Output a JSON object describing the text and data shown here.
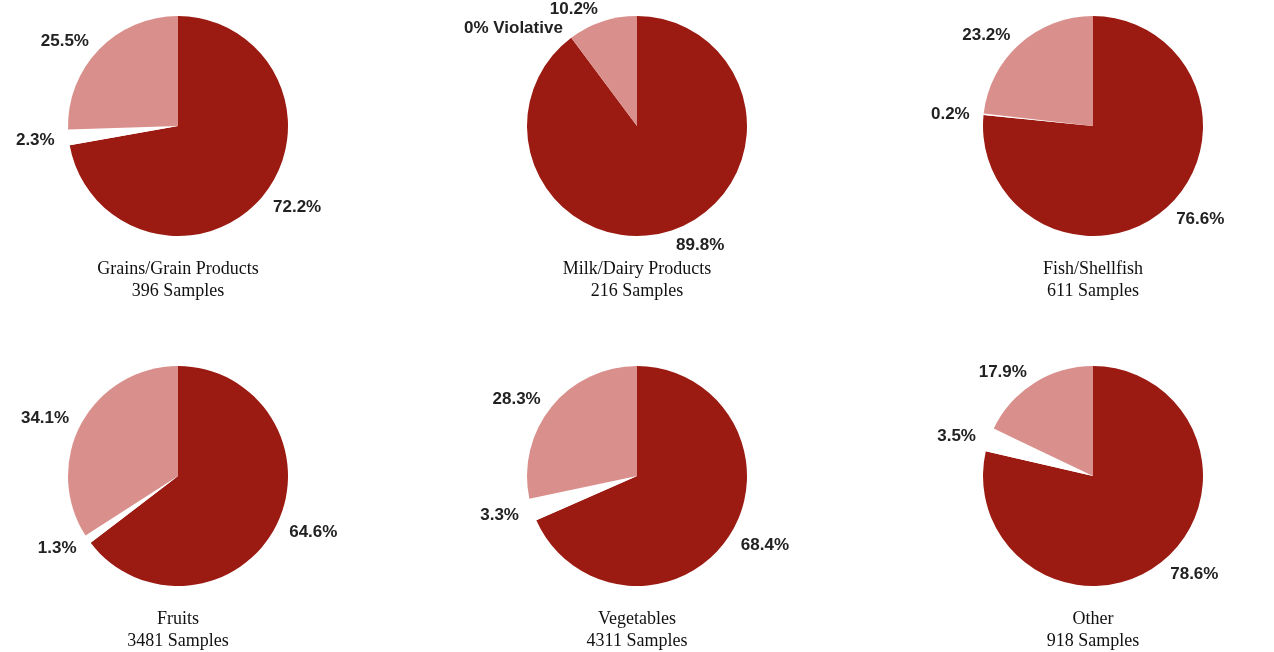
{
  "chart_data": [
    {
      "type": "pie",
      "title": "Grains/Grain Products",
      "subtitle": "396 Samples",
      "categories": [
        null,
        null,
        null
      ],
      "values": [
        72.2,
        2.3,
        25.5
      ],
      "colors": [
        "#9b1b12",
        "#ffffff",
        "#d98f8b"
      ],
      "value_labels": [
        "72.2%",
        "2.3%",
        "25.5%"
      ]
    },
    {
      "type": "pie",
      "title": "Milk/Dairy Products",
      "subtitle": "216 Samples",
      "categories": [
        null,
        null,
        null
      ],
      "values": [
        89.8,
        0,
        10.2
      ],
      "colors": [
        "#9b1b12",
        "#ffffff",
        "#d98f8b"
      ],
      "value_labels": [
        "89.8%",
        "0% Violative",
        "10.2%"
      ]
    },
    {
      "type": "pie",
      "title": "Fish/Shellfish",
      "subtitle": "611 Samples",
      "categories": [
        null,
        null,
        null
      ],
      "values": [
        76.6,
        0.2,
        23.2
      ],
      "colors": [
        "#9b1b12",
        "#ffffff",
        "#d98f8b"
      ],
      "value_labels": [
        "76.6%",
        "0.2%",
        "23.2%"
      ]
    },
    {
      "type": "pie",
      "title": "Fruits",
      "subtitle": "3481 Samples",
      "categories": [
        null,
        null,
        null
      ],
      "values": [
        64.6,
        1.3,
        34.1
      ],
      "colors": [
        "#9b1b12",
        "#ffffff",
        "#d98f8b"
      ],
      "value_labels": [
        "64.6%",
        "1.3%",
        "34.1%"
      ]
    },
    {
      "type": "pie",
      "title": "Vegetables",
      "subtitle": "4311 Samples",
      "categories": [
        null,
        null,
        null
      ],
      "values": [
        68.4,
        3.3,
        28.3
      ],
      "colors": [
        "#9b1b12",
        "#ffffff",
        "#d98f8b"
      ],
      "value_labels": [
        "68.4%",
        "3.3%",
        "28.3%"
      ]
    },
    {
      "type": "pie",
      "title": "Other",
      "subtitle": "918 Samples",
      "categories": [
        null,
        null,
        null
      ],
      "values": [
        78.6,
        3.5,
        17.9
      ],
      "colors": [
        "#9b1b12",
        "#ffffff",
        "#d98f8b"
      ],
      "value_labels": [
        "78.6%",
        "3.5%",
        "17.9%"
      ]
    }
  ]
}
